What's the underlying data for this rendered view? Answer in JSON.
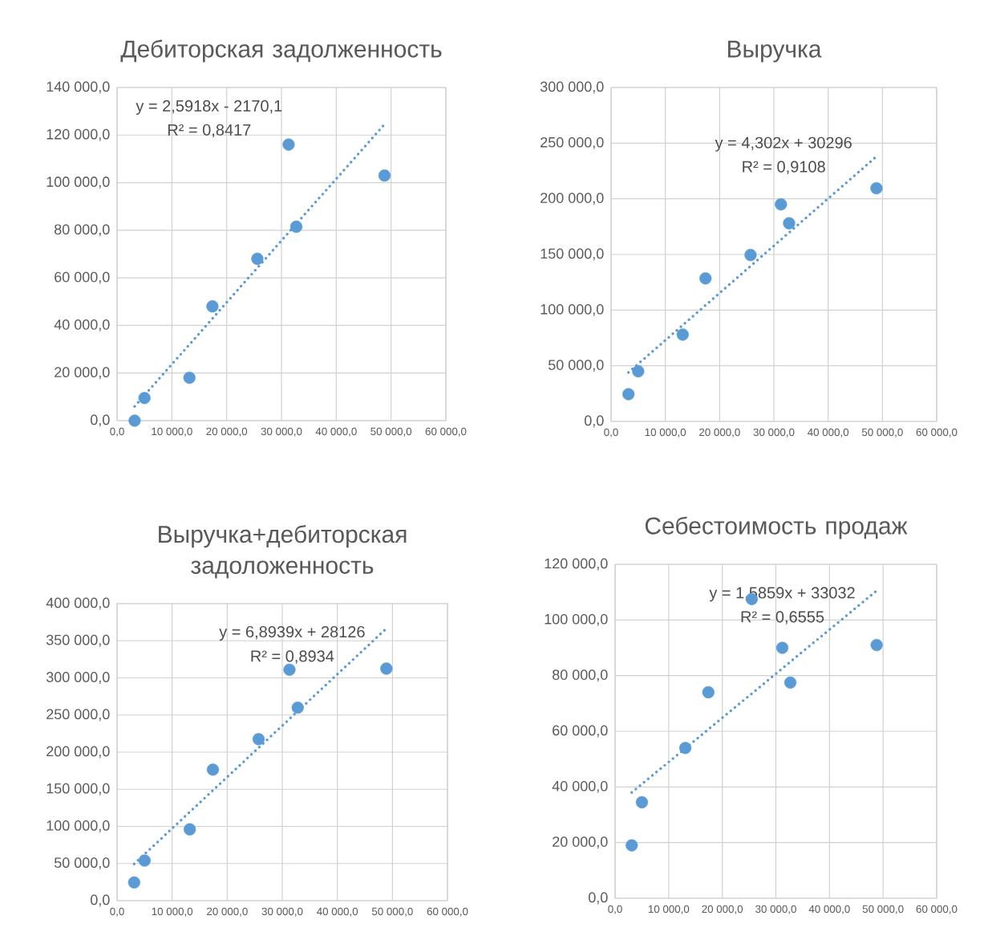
{
  "chart_data": [
    {
      "type": "scatter",
      "title": "Дебиторская задолженность",
      "grid": true,
      "x": [
        3200,
        5000,
        13200,
        17400,
        25600,
        31300,
        32700,
        48800
      ],
      "series": [
        {
          "color": "#5b9bd5",
          "marker": "circle",
          "values": [
            0,
            9500,
            18000,
            48000,
            68000,
            116000,
            81500,
            103000
          ]
        },
        {
          "type": "line",
          "color": "#5b9bd5",
          "line_style": "dotted",
          "x": [
            3200,
            48800
          ],
          "values": [
            6000,
            124500
          ]
        }
      ],
      "annotations": [
        "y = 2,5918x - 2170,1",
        "R² = 0,8417"
      ],
      "xlim": [
        0,
        60000
      ],
      "ylim": [
        0,
        140000
      ],
      "xticks": [
        {
          "value": 0,
          "label": "0,0"
        },
        {
          "value": 10000,
          "label": "10 000,0"
        },
        {
          "value": 20000,
          "label": "20 000,0"
        },
        {
          "value": 30000,
          "label": "30 000,0"
        },
        {
          "value": 40000,
          "label": "40 000,0"
        },
        {
          "value": 50000,
          "label": "50 000,0"
        },
        {
          "value": 60000,
          "label": "60 000,0"
        }
      ],
      "yticks": [
        {
          "value": 0,
          "label": "0,0"
        },
        {
          "value": 20000,
          "label": "20 000,0"
        },
        {
          "value": 40000,
          "label": "40 000,0"
        },
        {
          "value": 60000,
          "label": "60 000,0"
        },
        {
          "value": 80000,
          "label": "80 000,0"
        },
        {
          "value": 100000,
          "label": "100 000,0"
        },
        {
          "value": 120000,
          "label": "120 000,0"
        },
        {
          "value": 140000,
          "label": "140 000,0"
        }
      ]
    },
    {
      "type": "scatter",
      "title": "Выручка",
      "grid": true,
      "x": [
        3200,
        5000,
        13200,
        17400,
        25700,
        31300,
        32800,
        48900
      ],
      "series": [
        {
          "color": "#5b9bd5",
          "marker": "circle",
          "values": [
            24500,
            45000,
            78000,
            128500,
            149500,
            195000,
            178000,
            209500
          ]
        },
        {
          "type": "line",
          "color": "#5b9bd5",
          "line_style": "dotted",
          "x": [
            3200,
            48900
          ],
          "values": [
            44000,
            238000
          ]
        }
      ],
      "annotations": [
        "y = 4,302x + 30296",
        "R² = 0,9108"
      ],
      "xlim": [
        0,
        60000
      ],
      "ylim": [
        0,
        300000
      ],
      "xticks": [
        {
          "value": 0,
          "label": "0,0"
        },
        {
          "value": 10000,
          "label": "10 000,0"
        },
        {
          "value": 20000,
          "label": "20 000,0"
        },
        {
          "value": 30000,
          "label": "30 000,0"
        },
        {
          "value": 40000,
          "label": "40 000,0"
        },
        {
          "value": 50000,
          "label": "50 000,0"
        },
        {
          "value": 60000,
          "label": "60 000,0"
        }
      ],
      "yticks": [
        {
          "value": 0,
          "label": "0,0"
        },
        {
          "value": 50000,
          "label": "50 000,0"
        },
        {
          "value": 100000,
          "label": "100 000,0"
        },
        {
          "value": 150000,
          "label": "150 000,0"
        },
        {
          "value": 200000,
          "label": "200 000,0"
        },
        {
          "value": 250000,
          "label": "250 000,0"
        },
        {
          "value": 300000,
          "label": "300 000,0"
        }
      ]
    },
    {
      "type": "scatter",
      "title": "Выручка+дебиторская задоложенность",
      "grid": true,
      "x": [
        3100,
        5000,
        13200,
        17400,
        25700,
        31300,
        32800,
        48900
      ],
      "series": [
        {
          "color": "#5b9bd5",
          "marker": "circle",
          "values": [
            24500,
            54000,
            96000,
            176500,
            217500,
            311000,
            260000,
            312500
          ]
        },
        {
          "type": "line",
          "color": "#5b9bd5",
          "line_style": "dotted",
          "x": [
            3100,
            48900
          ],
          "values": [
            49500,
            366500
          ]
        }
      ],
      "annotations": [
        "y = 6,8939x + 28126",
        "R² = 0,8934"
      ],
      "xlim": [
        0,
        60000
      ],
      "ylim": [
        0,
        400000
      ],
      "xticks": [
        {
          "value": 0,
          "label": "0,0"
        },
        {
          "value": 10000,
          "label": "10 000,0"
        },
        {
          "value": 20000,
          "label": "20 000,0"
        },
        {
          "value": 30000,
          "label": "30 000,0"
        },
        {
          "value": 40000,
          "label": "40 000,0"
        },
        {
          "value": 50000,
          "label": "50 000,0"
        },
        {
          "value": 60000,
          "label": "60 000,0"
        }
      ],
      "yticks": [
        {
          "value": 0,
          "label": "0,0"
        },
        {
          "value": 50000,
          "label": "50 000,0"
        },
        {
          "value": 100000,
          "label": "100 000,0"
        },
        {
          "value": 150000,
          "label": "150 000,0"
        },
        {
          "value": 200000,
          "label": "200 000,0"
        },
        {
          "value": 250000,
          "label": "250 000,0"
        },
        {
          "value": 300000,
          "label": "300 000,0"
        },
        {
          "value": 350000,
          "label": "350 000,0"
        },
        {
          "value": 400000,
          "label": "400 000,0"
        }
      ]
    },
    {
      "type": "scatter",
      "title": "Себестоимость продаж",
      "grid": true,
      "x": [
        3100,
        5000,
        13100,
        17400,
        25500,
        31200,
        32700,
        48800
      ],
      "series": [
        {
          "color": "#5b9bd5",
          "marker": "circle",
          "values": [
            19000,
            34500,
            54000,
            74000,
            107500,
            90000,
            77500,
            91000
          ]
        },
        {
          "type": "line",
          "color": "#5b9bd5",
          "line_style": "dotted",
          "x": [
            3100,
            48800
          ],
          "values": [
            38000,
            110500
          ]
        }
      ],
      "annotations": [
        "y = 1,5859x + 33032",
        "R² = 0,6555"
      ],
      "xlim": [
        0,
        60000
      ],
      "ylim": [
        0,
        120000
      ],
      "xticks": [
        {
          "value": 0,
          "label": "0,0"
        },
        {
          "value": 10000,
          "label": "10 000,0"
        },
        {
          "value": 20000,
          "label": "20 000,0"
        },
        {
          "value": 30000,
          "label": "30 000,0"
        },
        {
          "value": 40000,
          "label": "40 000,0"
        },
        {
          "value": 50000,
          "label": "50 000,0"
        },
        {
          "value": 60000,
          "label": "60 000,0"
        }
      ],
      "yticks": [
        {
          "value": 0,
          "label": "0,0"
        },
        {
          "value": 20000,
          "label": "20 000,0"
        },
        {
          "value": 40000,
          "label": "40 000,0"
        },
        {
          "value": 60000,
          "label": "60 000,0"
        },
        {
          "value": 80000,
          "label": "80 000,0"
        },
        {
          "value": 100000,
          "label": "100 000,0"
        },
        {
          "value": 120000,
          "label": "120 000,0"
        }
      ]
    }
  ]
}
